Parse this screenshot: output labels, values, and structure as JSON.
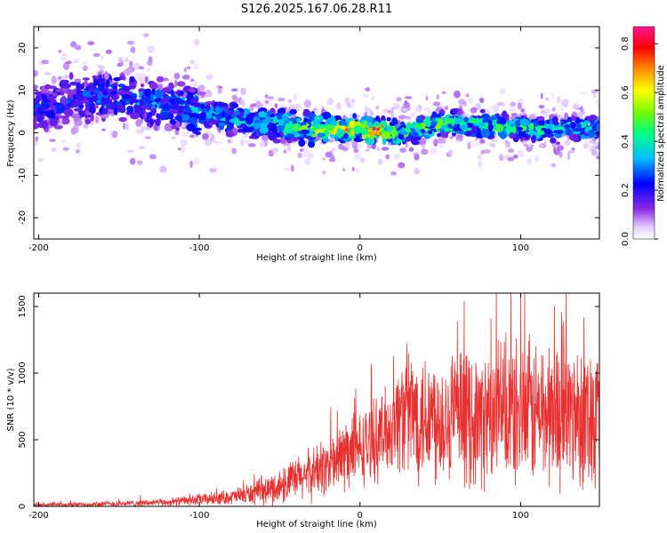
{
  "title": "S126.2025.167.06.28.R11",
  "chart_data": [
    {
      "type": "heatmap",
      "xlabel": "Height of straight line (km)",
      "ylabel": "Frequency (Hz)",
      "xlim": [
        -203,
        149
      ],
      "ylim": [
        -25,
        25
      ],
      "xticks": [
        -200,
        -100,
        0,
        100
      ],
      "yticks": [
        -20,
        -10,
        0,
        10,
        20
      ],
      "colorbar": {
        "label": "Normalized spectral amplitude",
        "range": [
          0,
          0.87
        ],
        "ticks": [
          "0.0",
          "0.2",
          "0.4",
          "0.6",
          "0.8"
        ],
        "colors": [
          "#ffffff",
          "#e8d4ff",
          "#8a2be2",
          "#0000ff",
          "#00bfff",
          "#00ff80",
          "#7cfc00",
          "#ffff00",
          "#ff8c00",
          "#ff0000",
          "#ff1493"
        ]
      },
      "ridge_center_hz": [
        [
          -200,
          6
        ],
        [
          -175,
          8
        ],
        [
          -150,
          9
        ],
        [
          -125,
          7
        ],
        [
          -100,
          5
        ],
        [
          -75,
          3
        ],
        [
          -50,
          2
        ],
        [
          -25,
          1
        ],
        [
          0,
          1
        ],
        [
          25,
          0
        ],
        [
          50,
          2
        ],
        [
          75,
          2
        ],
        [
          100,
          1
        ],
        [
          125,
          1
        ],
        [
          149,
          1
        ]
      ],
      "ridge_peak_amplitude": [
        [
          -200,
          0.25
        ],
        [
          -150,
          0.3
        ],
        [
          -100,
          0.35
        ],
        [
          -50,
          0.4
        ],
        [
          -15,
          0.65
        ],
        [
          0,
          0.7
        ],
        [
          10,
          0.85
        ],
        [
          25,
          0.5
        ],
        [
          50,
          0.5
        ],
        [
          75,
          0.45
        ],
        [
          100,
          0.45
        ],
        [
          125,
          0.4
        ],
        [
          149,
          0.4
        ]
      ]
    },
    {
      "type": "line",
      "xlabel": "Height of straight line (km)",
      "ylabel": "SNR (10 * v/v)",
      "xlim": [
        -203,
        149
      ],
      "ylim": [
        0,
        1600
      ],
      "xticks": [
        -200,
        -100,
        0,
        100
      ],
      "yticks": [
        0,
        500,
        1000,
        1500
      ],
      "color": "#e83030",
      "envelope": {
        "x": [
          -203,
          -150,
          -120,
          -100,
          -80,
          -60,
          -50,
          -40,
          -30,
          -20,
          -10,
          0,
          10,
          20,
          25,
          30,
          50,
          75,
          100,
          125,
          149
        ],
        "median": [
          10,
          20,
          30,
          50,
          70,
          110,
          150,
          200,
          250,
          300,
          380,
          430,
          500,
          600,
          700,
          700,
          680,
          650,
          700,
          700,
          700
        ],
        "spread": [
          10,
          20,
          25,
          40,
          50,
          90,
          120,
          150,
          180,
          200,
          250,
          250,
          270,
          300,
          400,
          450,
          450,
          450,
          500,
          500,
          500
        ]
      },
      "peak_max": 1600
    }
  ]
}
